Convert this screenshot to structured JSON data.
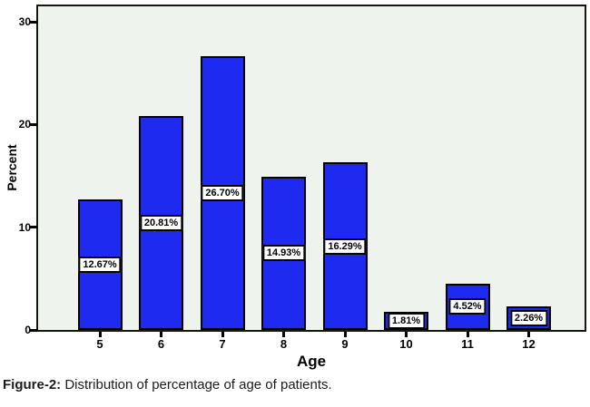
{
  "figure": {
    "caption_prefix": "Figure-2:",
    "caption_text": " Distribution of percentage of age of patients."
  },
  "chart_data": {
    "type": "bar",
    "title": "",
    "xlabel": "Age",
    "ylabel": "Percent",
    "categories": [
      "5",
      "6",
      "7",
      "8",
      "9",
      "10",
      "11",
      "12"
    ],
    "values": [
      12.67,
      20.81,
      26.7,
      14.93,
      16.29,
      1.81,
      4.52,
      2.26
    ],
    "bar_labels": [
      "12.67%",
      "20.81%",
      "26.70%",
      "14.93%",
      "16.29%",
      "1.81%",
      "4.52%",
      "2.26%"
    ],
    "y_ticks": [
      0,
      10,
      20,
      30
    ],
    "ylim": [
      0,
      31.6
    ],
    "grid": false,
    "legend": null,
    "colors": {
      "bar_fill": "#1f2af0",
      "bar_border": "#000000",
      "plot_bg": "#eff3ee",
      "frame": "#14170e",
      "label_box_bg": "#ffffff"
    }
  }
}
